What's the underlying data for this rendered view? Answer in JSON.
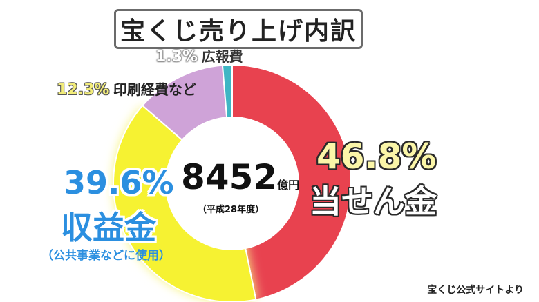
{
  "chart_data": {
    "type": "pie",
    "title": "宝くじ売り上げ内訳",
    "total": {
      "value": "8452",
      "unit": "億円",
      "note": "（平成28年度）"
    },
    "slices": [
      {
        "key": "tousen",
        "label": "当せん金",
        "value": 46.8,
        "pct_text": "46.8%",
        "color": "#e8424f"
      },
      {
        "key": "shueki",
        "label": "収益金",
        "sublabel": "（公共事業などに使用）",
        "value": 39.6,
        "pct_text": "39.6%",
        "color": "#f6f230"
      },
      {
        "key": "insatsu",
        "label": "印刷経費など",
        "value": 12.3,
        "pct_text": "12.3%",
        "color": "#cfa3d8"
      },
      {
        "key": "kouhou",
        "label": "広報費",
        "value": 1.3,
        "pct_text": "1.3%",
        "color": "#3fb6c4"
      }
    ],
    "legend": "none"
  },
  "source": "宝くじ公式サイトより"
}
